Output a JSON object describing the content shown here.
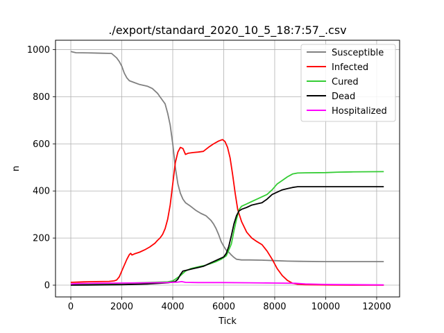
{
  "chart_data": {
    "type": "line",
    "title": "./export/standard_2020_10_5_18:7:57_.csv",
    "xlabel": "Tick",
    "ylabel": "n",
    "xlim": [
      -600,
      12900
    ],
    "ylim": [
      -50,
      1040
    ],
    "xticks": [
      0,
      2000,
      4000,
      6000,
      8000,
      10000,
      12000
    ],
    "yticks": [
      0,
      200,
      400,
      600,
      800,
      1000
    ],
    "grid": true,
    "legend_position": "top-right",
    "series": [
      {
        "name": "Susceptible",
        "color": "#808080",
        "points": [
          [
            0,
            992
          ],
          [
            200,
            987
          ],
          [
            800,
            986
          ],
          [
            1200,
            985
          ],
          [
            1600,
            984
          ],
          [
            1800,
            965
          ],
          [
            1900,
            950
          ],
          [
            2000,
            930
          ],
          [
            2100,
            900
          ],
          [
            2200,
            880
          ],
          [
            2300,
            868
          ],
          [
            2500,
            860
          ],
          [
            2700,
            852
          ],
          [
            3000,
            845
          ],
          [
            3200,
            835
          ],
          [
            3400,
            815
          ],
          [
            3500,
            800
          ],
          [
            3600,
            785
          ],
          [
            3700,
            770
          ],
          [
            3800,
            730
          ],
          [
            3900,
            680
          ],
          [
            4000,
            600
          ],
          [
            4100,
            500
          ],
          [
            4200,
            430
          ],
          [
            4300,
            390
          ],
          [
            4400,
            365
          ],
          [
            4500,
            350
          ],
          [
            4700,
            335
          ],
          [
            4900,
            318
          ],
          [
            5100,
            305
          ],
          [
            5300,
            295
          ],
          [
            5500,
            275
          ],
          [
            5600,
            260
          ],
          [
            5700,
            240
          ],
          [
            5800,
            215
          ],
          [
            5900,
            185
          ],
          [
            6000,
            165
          ],
          [
            6100,
            148
          ],
          [
            6200,
            140
          ],
          [
            6300,
            128
          ],
          [
            6400,
            118
          ],
          [
            6500,
            110
          ],
          [
            6700,
            107
          ],
          [
            7000,
            107
          ],
          [
            7500,
            106
          ],
          [
            8000,
            104
          ],
          [
            8500,
            102
          ],
          [
            9000,
            101
          ],
          [
            10000,
            100
          ],
          [
            11000,
            100
          ],
          [
            12280,
            100
          ]
        ]
      },
      {
        "name": "Infected",
        "color": "#ff0000",
        "points": [
          [
            0,
            12
          ],
          [
            500,
            14
          ],
          [
            1000,
            15
          ],
          [
            1500,
            16
          ],
          [
            1700,
            18
          ],
          [
            1800,
            22
          ],
          [
            1900,
            35
          ],
          [
            2000,
            60
          ],
          [
            2100,
            85
          ],
          [
            2200,
            110
          ],
          [
            2300,
            130
          ],
          [
            2350,
            135
          ],
          [
            2400,
            128
          ],
          [
            2500,
            133
          ],
          [
            2700,
            140
          ],
          [
            2900,
            150
          ],
          [
            3100,
            162
          ],
          [
            3300,
            178
          ],
          [
            3400,
            190
          ],
          [
            3500,
            200
          ],
          [
            3600,
            215
          ],
          [
            3700,
            240
          ],
          [
            3800,
            280
          ],
          [
            3900,
            340
          ],
          [
            4000,
            430
          ],
          [
            4100,
            520
          ],
          [
            4200,
            565
          ],
          [
            4300,
            585
          ],
          [
            4400,
            580
          ],
          [
            4500,
            555
          ],
          [
            4600,
            560
          ],
          [
            4800,
            563
          ],
          [
            5000,
            565
          ],
          [
            5200,
            568
          ],
          [
            5400,
            585
          ],
          [
            5600,
            600
          ],
          [
            5800,
            612
          ],
          [
            5950,
            618
          ],
          [
            6050,
            610
          ],
          [
            6150,
            585
          ],
          [
            6250,
            540
          ],
          [
            6350,
            470
          ],
          [
            6450,
            390
          ],
          [
            6550,
            320
          ],
          [
            6700,
            270
          ],
          [
            6900,
            225
          ],
          [
            7100,
            200
          ],
          [
            7300,
            185
          ],
          [
            7500,
            172
          ],
          [
            7700,
            145
          ],
          [
            7900,
            110
          ],
          [
            8100,
            70
          ],
          [
            8300,
            40
          ],
          [
            8500,
            20
          ],
          [
            8700,
            8
          ],
          [
            8900,
            4
          ],
          [
            9200,
            2
          ],
          [
            10000,
            1
          ],
          [
            11000,
            0
          ],
          [
            12280,
            0
          ]
        ]
      },
      {
        "name": "Cured",
        "color": "#33cc33",
        "points": [
          [
            0,
            3
          ],
          [
            1000,
            5
          ],
          [
            2000,
            8
          ],
          [
            3000,
            11
          ],
          [
            3800,
            14
          ],
          [
            4000,
            18
          ],
          [
            4100,
            25
          ],
          [
            4300,
            40
          ],
          [
            4500,
            60
          ],
          [
            4700,
            70
          ],
          [
            5000,
            78
          ],
          [
            5300,
            85
          ],
          [
            5500,
            92
          ],
          [
            5700,
            100
          ],
          [
            5900,
            110
          ],
          [
            6100,
            125
          ],
          [
            6300,
            175
          ],
          [
            6400,
            230
          ],
          [
            6500,
            280
          ],
          [
            6600,
            320
          ],
          [
            6700,
            335
          ],
          [
            6900,
            345
          ],
          [
            7100,
            355
          ],
          [
            7300,
            365
          ],
          [
            7500,
            375
          ],
          [
            7700,
            385
          ],
          [
            7900,
            405
          ],
          [
            8100,
            430
          ],
          [
            8300,
            445
          ],
          [
            8500,
            460
          ],
          [
            8700,
            472
          ],
          [
            8900,
            476
          ],
          [
            9200,
            477
          ],
          [
            10000,
            478
          ],
          [
            10500,
            480
          ],
          [
            11000,
            481
          ],
          [
            12280,
            482
          ]
        ]
      },
      {
        "name": "Dead",
        "color": "#000000",
        "points": [
          [
            0,
            0
          ],
          [
            1000,
            1
          ],
          [
            2000,
            2
          ],
          [
            3000,
            5
          ],
          [
            3800,
            10
          ],
          [
            4100,
            15
          ],
          [
            4200,
            25
          ],
          [
            4300,
            45
          ],
          [
            4400,
            60
          ],
          [
            4600,
            65
          ],
          [
            4800,
            70
          ],
          [
            5000,
            75
          ],
          [
            5200,
            80
          ],
          [
            5400,
            90
          ],
          [
            5600,
            100
          ],
          [
            5800,
            110
          ],
          [
            6000,
            120
          ],
          [
            6100,
            135
          ],
          [
            6200,
            165
          ],
          [
            6300,
            210
          ],
          [
            6400,
            260
          ],
          [
            6500,
            295
          ],
          [
            6600,
            315
          ],
          [
            6700,
            322
          ],
          [
            6900,
            330
          ],
          [
            7100,
            340
          ],
          [
            7300,
            345
          ],
          [
            7500,
            350
          ],
          [
            7700,
            365
          ],
          [
            7900,
            385
          ],
          [
            8100,
            395
          ],
          [
            8300,
            405
          ],
          [
            8500,
            410
          ],
          [
            8700,
            415
          ],
          [
            8900,
            418
          ],
          [
            9500,
            418
          ],
          [
            10500,
            418
          ],
          [
            12280,
            418
          ]
        ]
      },
      {
        "name": "Hospitalized",
        "color": "#ff00ff",
        "points": [
          [
            0,
            5
          ],
          [
            300,
            7
          ],
          [
            1000,
            8
          ],
          [
            2000,
            9
          ],
          [
            3000,
            10
          ],
          [
            3800,
            11
          ],
          [
            4000,
            12
          ],
          [
            4200,
            13
          ],
          [
            4350,
            15
          ],
          [
            4500,
            12
          ],
          [
            5000,
            11
          ],
          [
            6000,
            11
          ],
          [
            7000,
            10
          ],
          [
            8000,
            9
          ],
          [
            8800,
            8
          ],
          [
            9200,
            5
          ],
          [
            10000,
            3
          ],
          [
            11000,
            2
          ],
          [
            12280,
            1
          ]
        ]
      }
    ]
  }
}
